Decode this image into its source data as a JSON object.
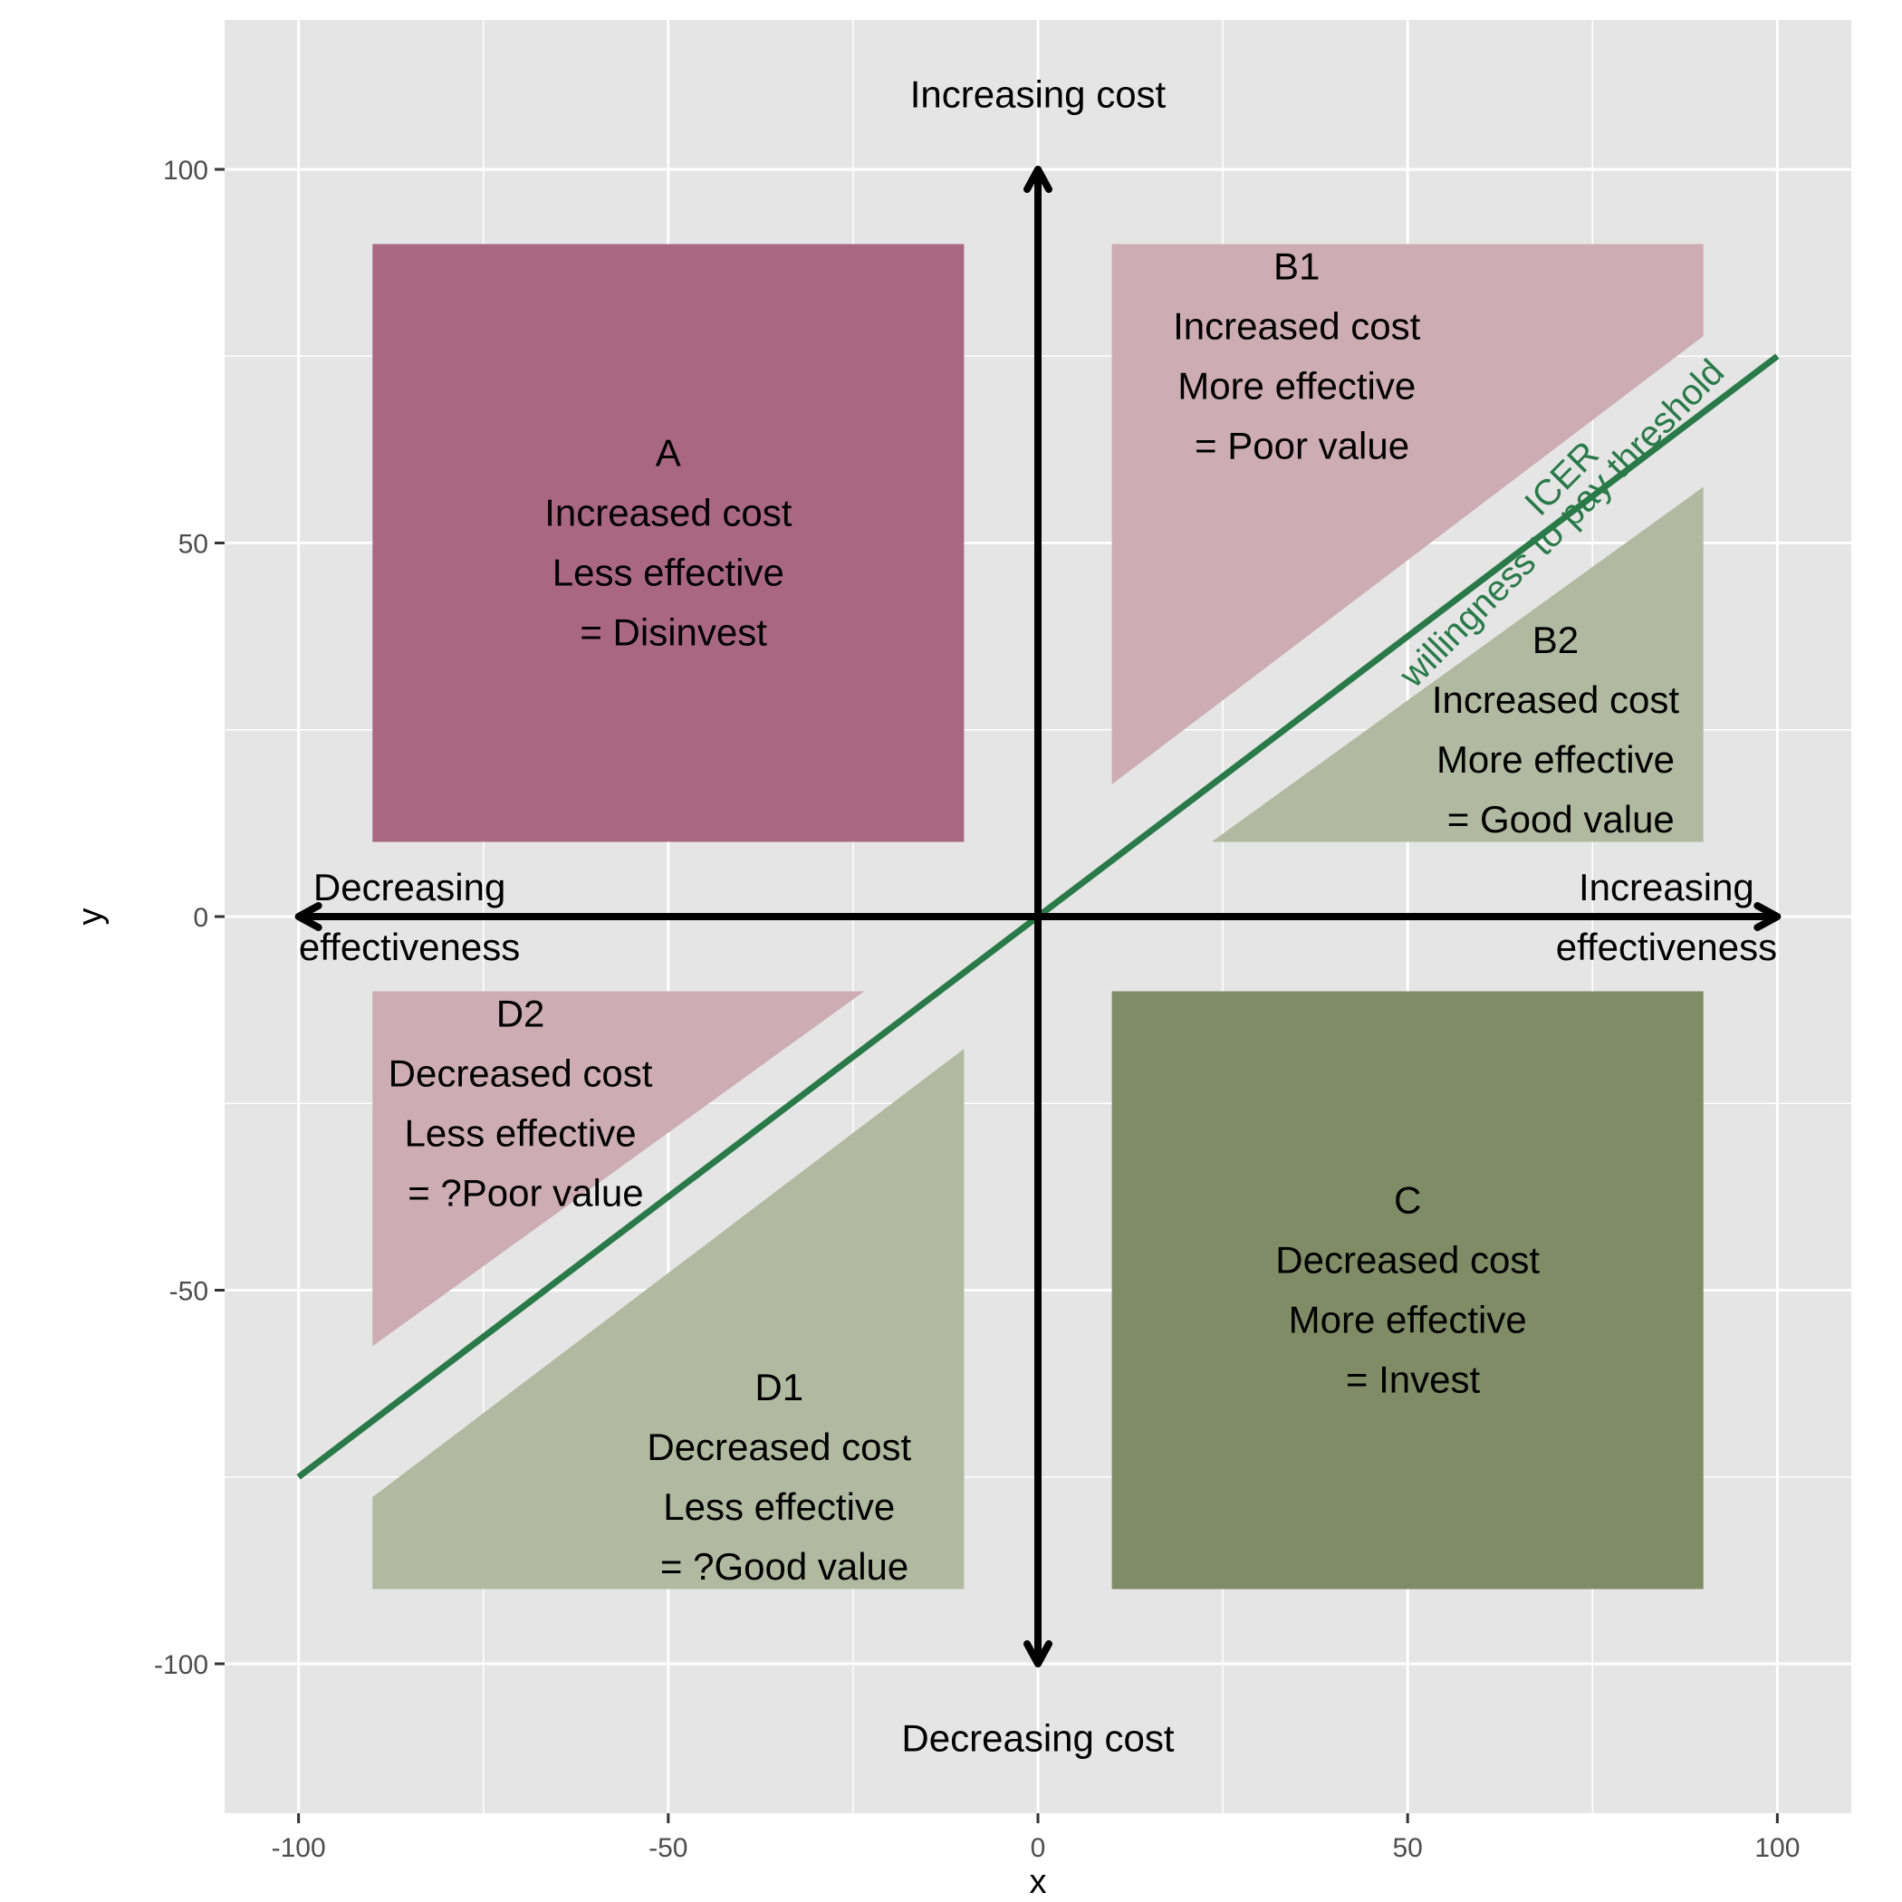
{
  "chart_data": {
    "type": "scatter",
    "xlabel": "x",
    "ylabel": "y",
    "xlim": [
      -110,
      110
    ],
    "ylim": [
      -120,
      120
    ],
    "xticks": [
      -100,
      -50,
      0,
      50,
      100
    ],
    "yticks": [
      -100,
      -50,
      0,
      50,
      100
    ],
    "grid": true,
    "colors": {
      "panel": "#e5e5e5",
      "grid": "#ffffff",
      "icer_line": "#2a7a49",
      "dark_red": "#aa6880",
      "light_red": "#cdacb4",
      "light_green": "#b1b9a0",
      "dark_green": "#7f8c66"
    },
    "regions": [
      {
        "id": "A",
        "fill": "dark_red",
        "polygon": [
          [
            -90,
            10
          ],
          [
            -10,
            10
          ],
          [
            -10,
            90
          ],
          [
            -90,
            90
          ]
        ]
      },
      {
        "id": "B1",
        "fill": "light_red",
        "polygon": [
          [
            10,
            17.7
          ],
          [
            10,
            90
          ],
          [
            90,
            90
          ],
          [
            90,
            77.7
          ]
        ]
      },
      {
        "id": "B2",
        "fill": "light_green",
        "polygon": [
          [
            23.5,
            10
          ],
          [
            90,
            10
          ],
          [
            90,
            57.5
          ]
        ]
      },
      {
        "id": "C",
        "fill": "dark_green",
        "polygon": [
          [
            10,
            -10
          ],
          [
            90,
            -10
          ],
          [
            90,
            -90
          ],
          [
            10,
            -90
          ]
        ]
      },
      {
        "id": "D1",
        "fill": "light_green",
        "polygon": [
          [
            -90,
            -90
          ],
          [
            -10,
            -90
          ],
          [
            -10,
            -17.7
          ],
          [
            -90,
            -77.7
          ]
        ]
      },
      {
        "id": "D2",
        "fill": "light_red",
        "polygon": [
          [
            -90,
            -10
          ],
          [
            -23.5,
            -10
          ],
          [
            -90,
            -57.5
          ]
        ]
      }
    ],
    "icer_line": {
      "x": [
        -100,
        100
      ],
      "y": [
        -75,
        75
      ]
    },
    "icer_labels": [
      "ICER",
      "willingness to pay threshold"
    ],
    "axis_arrows": {
      "horizontal": {
        "x": [
          -100,
          100
        ],
        "y": 0
      },
      "vertical": {
        "x": 0,
        "y": [
          -100,
          100
        ]
      }
    },
    "annotations": [
      {
        "id": "A",
        "x": -50,
        "y": 50,
        "lines": [
          "A",
          "Increased cost",
          "Less effective",
          "   = Disinvest"
        ]
      },
      {
        "id": "B1",
        "x": 35,
        "y": 75,
        "lines": [
          "B1",
          "Increased cost",
          "More effective",
          "   = Poor value"
        ]
      },
      {
        "id": "B2",
        "x": 70,
        "y": 25,
        "lines": [
          "B2",
          "Increased cost",
          "More effective",
          "   = Good value"
        ]
      },
      {
        "id": "C",
        "x": 50,
        "y": -50,
        "lines": [
          "C",
          "Decreased cost",
          "More effective",
          "   = Invest"
        ]
      },
      {
        "id": "D1",
        "x": -35,
        "y": -75,
        "lines": [
          "D1",
          "Decreased cost",
          "Less effective",
          "   = ?Good value"
        ]
      },
      {
        "id": "D2",
        "x": -70,
        "y": -25,
        "lines": [
          "D2",
          "Decreased cost",
          "Less effective",
          "   = ?Poor value"
        ]
      }
    ],
    "edge_labels": {
      "top": "Increasing cost",
      "bottom": "Decreasing cost",
      "left": [
        "Decreasing",
        "effectiveness"
      ],
      "right": [
        "Increasing",
        "effectiveness"
      ]
    }
  }
}
